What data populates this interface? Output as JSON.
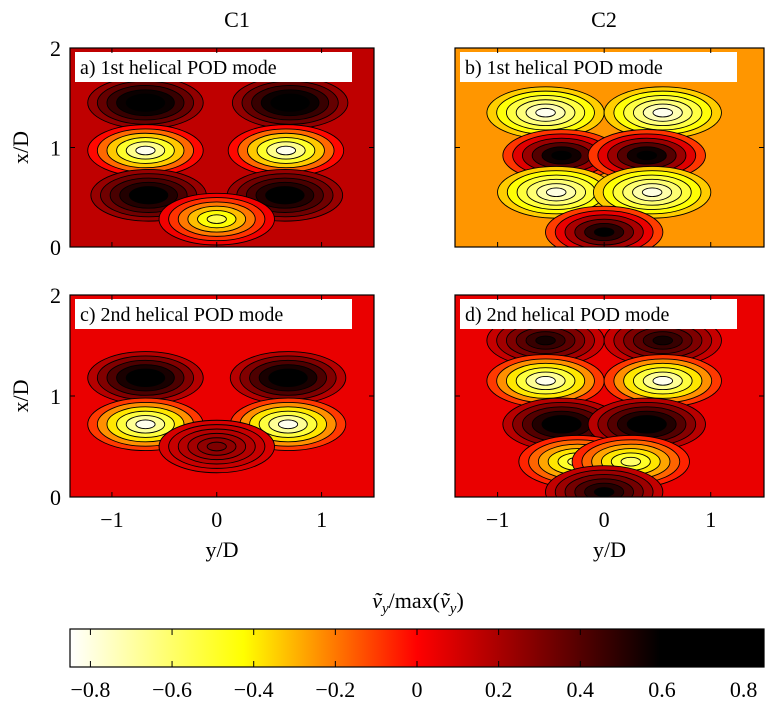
{
  "columns": [
    "C1",
    "C2"
  ],
  "axes": {
    "xlabel": "y/D",
    "ylabel": "x/D",
    "x_ticks": [
      "−1",
      "0",
      "1"
    ],
    "y_ticks": [
      "0",
      "1",
      "2"
    ]
  },
  "colorbar": {
    "label_quantity": "ṽ",
    "label_subscript": "y",
    "label_mid": "/max(",
    "label_end": ")",
    "ticks": [
      "−0.8",
      "−0.6",
      "−0.4",
      "−0.2",
      "0",
      "0.2",
      "0.4",
      "0.6",
      "0.8"
    ],
    "colors": [
      "#ffffff",
      "#ffff00",
      "#ff0000",
      "#000000"
    ]
  },
  "chart_data": [
    {
      "type": "contour",
      "panel": "a",
      "case": "C1",
      "title": "a) 1st helical POD mode",
      "xlabel": "",
      "ylabel": "x/D",
      "xlim": [
        -1.4,
        1.5
      ],
      "ylim": [
        0,
        2
      ],
      "background_value": 0.15,
      "extrema": [
        {
          "x": -0.68,
          "y": 1.45,
          "v": 0.78
        },
        {
          "x": 0.7,
          "y": 1.45,
          "v": 0.78
        },
        {
          "x": -0.68,
          "y": 0.97,
          "v": -0.82
        },
        {
          "x": 0.66,
          "y": 0.97,
          "v": -0.82
        },
        {
          "x": -0.65,
          "y": 0.52,
          "v": 0.7
        },
        {
          "x": 0.65,
          "y": 0.52,
          "v": 0.7
        },
        {
          "x": 0.0,
          "y": 0.28,
          "v": -0.55
        }
      ]
    },
    {
      "type": "contour",
      "panel": "b",
      "case": "C2",
      "title": "b) 1st helical POD mode",
      "xlabel": "",
      "ylabel": "",
      "xlim": [
        -1.4,
        1.5
      ],
      "ylim": [
        0,
        2
      ],
      "background_value": -0.25,
      "extrema": [
        {
          "x": -0.55,
          "y": 1.35,
          "v": -0.82
        },
        {
          "x": 0.55,
          "y": 1.35,
          "v": -0.82
        },
        {
          "x": -0.4,
          "y": 0.92,
          "v": 0.72
        },
        {
          "x": 0.4,
          "y": 0.92,
          "v": 0.72
        },
        {
          "x": -0.45,
          "y": 0.55,
          "v": -0.8
        },
        {
          "x": 0.45,
          "y": 0.55,
          "v": -0.8
        },
        {
          "x": 0.0,
          "y": 0.15,
          "v": 0.65
        }
      ]
    },
    {
      "type": "contour",
      "panel": "c",
      "case": "C1",
      "title": "c) 2nd helical POD mode",
      "xlabel": "y/D",
      "ylabel": "x/D",
      "xlim": [
        -1.4,
        1.5
      ],
      "ylim": [
        0,
        2
      ],
      "background_value": 0.05,
      "extrema": [
        {
          "x": -0.68,
          "y": 1.18,
          "v": 0.78
        },
        {
          "x": 0.68,
          "y": 1.18,
          "v": 0.78
        },
        {
          "x": -0.68,
          "y": 0.72,
          "v": -0.82
        },
        {
          "x": 0.68,
          "y": 0.72,
          "v": -0.82
        },
        {
          "x": 0.0,
          "y": 0.5,
          "v": 0.3
        }
      ]
    },
    {
      "type": "contour",
      "panel": "d",
      "case": "C2",
      "title": "d) 2nd helical POD mode",
      "xlabel": "y/D",
      "ylabel": "",
      "xlim": [
        -1.4,
        1.5
      ],
      "ylim": [
        0,
        2
      ],
      "background_value": 0.05,
      "extrema": [
        {
          "x": -0.55,
          "y": 1.55,
          "v": 0.55
        },
        {
          "x": 0.55,
          "y": 1.55,
          "v": 0.55
        },
        {
          "x": -0.55,
          "y": 1.15,
          "v": -0.82
        },
        {
          "x": 0.55,
          "y": 1.15,
          "v": -0.82
        },
        {
          "x": -0.4,
          "y": 0.72,
          "v": 0.75
        },
        {
          "x": 0.4,
          "y": 0.72,
          "v": 0.75
        },
        {
          "x": -0.25,
          "y": 0.35,
          "v": -0.6
        },
        {
          "x": 0.25,
          "y": 0.35,
          "v": -0.6
        },
        {
          "x": 0.0,
          "y": 0.05,
          "v": 0.6
        }
      ]
    }
  ]
}
